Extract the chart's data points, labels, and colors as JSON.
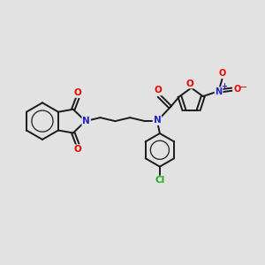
{
  "bg_color": "#e2e2e2",
  "bond_color": "#1a1a1a",
  "bond_lw": 1.4,
  "atom_colors": {
    "O": "#ee0000",
    "N": "#2222cc",
    "Cl": "#22aa22",
    "C": "#1a1a1a"
  },
  "figsize": [
    3.0,
    3.0
  ],
  "dpi": 100
}
